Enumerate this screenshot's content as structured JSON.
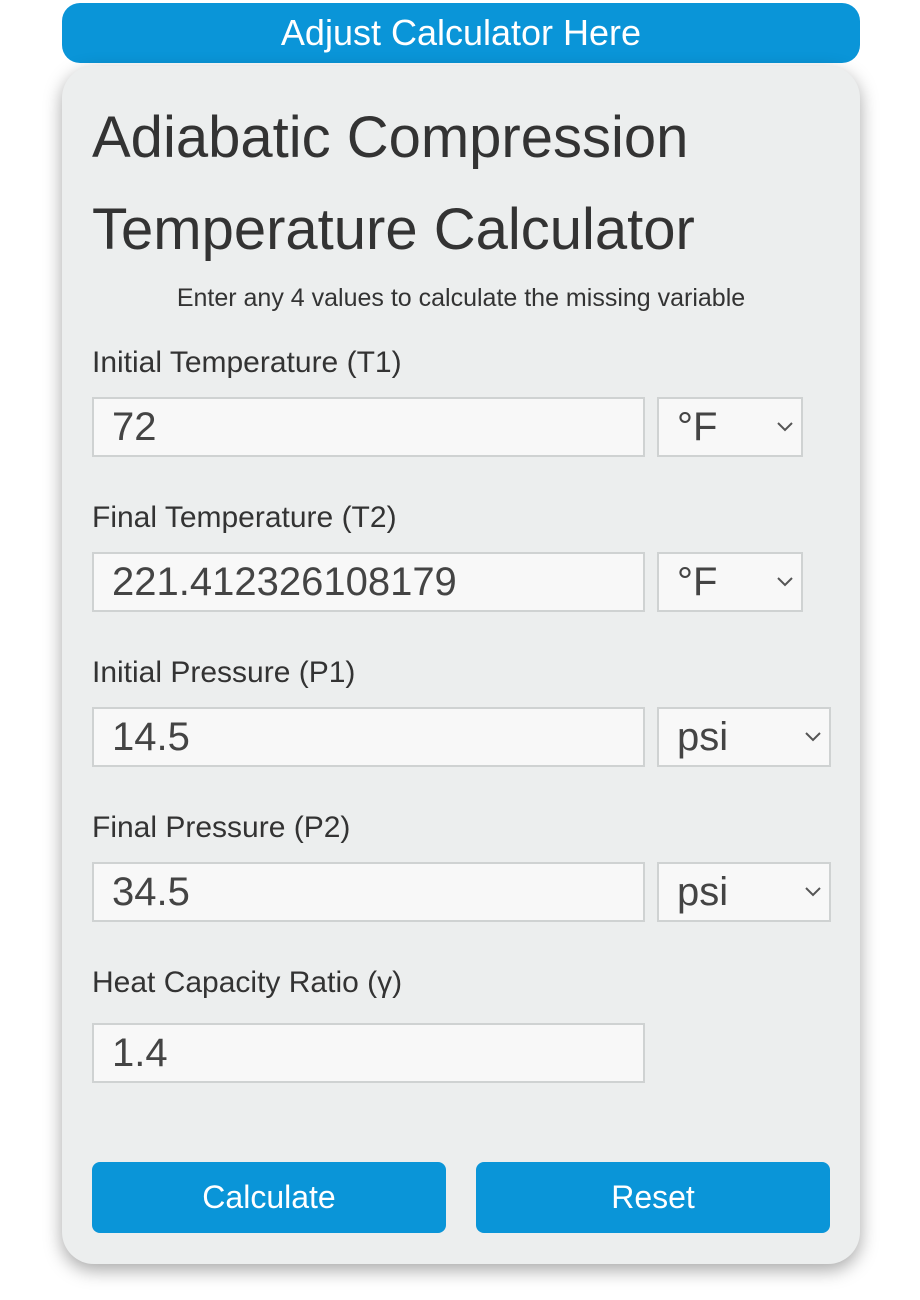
{
  "header": {
    "button": "Adjust Calculator Here"
  },
  "calculator": {
    "title": "Adiabatic Compression Temperature Calculator",
    "subtitle": "Enter any 4 values to calculate the missing variable",
    "fields": [
      {
        "label": "Initial Temperature (T1)",
        "value": "72",
        "unit": "°F"
      },
      {
        "label": "Final Temperature (T2)",
        "value": "221.412326108179",
        "unit": "°F"
      },
      {
        "label": "Initial Pressure (P1)",
        "value": "14.5",
        "unit": "psi"
      },
      {
        "label": "Final Pressure (P2)",
        "value": "34.5",
        "unit": "psi"
      },
      {
        "label": "Heat Capacity Ratio (γ)",
        "value": "1.4"
      }
    ],
    "buttons": [
      "Calculate",
      "Reset"
    ]
  }
}
